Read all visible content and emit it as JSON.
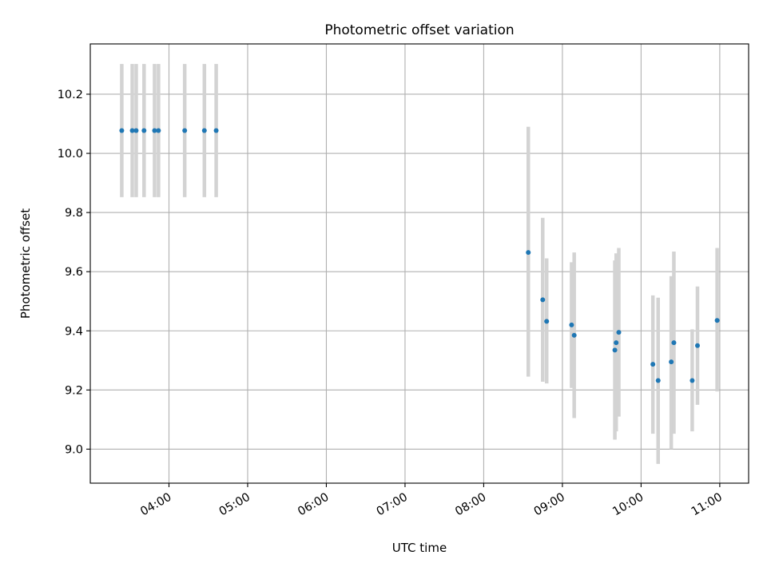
{
  "chart_data": {
    "type": "scatter",
    "title": "Photometric offset variation",
    "xlabel": "UTC time",
    "ylabel": "Photometric offset",
    "x_tick_labels": [
      "04:00",
      "05:00",
      "06:00",
      "07:00",
      "08:00",
      "09:00",
      "10:00",
      "11:00"
    ],
    "y_tick_labels": [
      "9.0",
      "9.2",
      "9.4",
      "9.6",
      "9.8",
      "10.0",
      "10.2"
    ],
    "xlim": [
      "03:00",
      "11:22"
    ],
    "ylim": [
      8.885,
      10.37
    ],
    "grid": true,
    "legend": "none",
    "colors": {
      "marker": "#1f77b4",
      "errorbar": "#d3d3d3",
      "grid": "#b0b0b0"
    },
    "series": [
      {
        "points": [
          {
            "x": "03:24",
            "y": 10.077,
            "ylo": 9.852,
            "yhi": 10.302
          },
          {
            "x": "03:32",
            "y": 10.077,
            "ylo": 9.852,
            "yhi": 10.302
          },
          {
            "x": "03:35",
            "y": 10.077,
            "ylo": 9.852,
            "yhi": 10.302
          },
          {
            "x": "03:41",
            "y": 10.077,
            "ylo": 9.852,
            "yhi": 10.302
          },
          {
            "x": "03:49",
            "y": 10.077,
            "ylo": 9.852,
            "yhi": 10.302
          },
          {
            "x": "03:52",
            "y": 10.077,
            "ylo": 9.852,
            "yhi": 10.302
          },
          {
            "x": "04:12",
            "y": 10.077,
            "ylo": 9.852,
            "yhi": 10.302
          },
          {
            "x": "04:27",
            "y": 10.077,
            "ylo": 9.852,
            "yhi": 10.302
          },
          {
            "x": "04:36",
            "y": 10.077,
            "ylo": 9.852,
            "yhi": 10.302
          },
          {
            "x": "08:34",
            "y": 9.665,
            "ylo": 9.245,
            "yhi": 10.09
          },
          {
            "x": "08:45",
            "y": 9.505,
            "ylo": 9.228,
            "yhi": 9.782
          },
          {
            "x": "08:48",
            "y": 9.432,
            "ylo": 9.222,
            "yhi": 9.645
          },
          {
            "x": "09:07",
            "y": 9.42,
            "ylo": 9.207,
            "yhi": 9.632
          },
          {
            "x": "09:09",
            "y": 9.385,
            "ylo": 9.105,
            "yhi": 9.665
          },
          {
            "x": "09:40",
            "y": 9.335,
            "ylo": 9.032,
            "yhi": 9.638
          },
          {
            "x": "09:41",
            "y": 9.36,
            "ylo": 9.06,
            "yhi": 9.662
          },
          {
            "x": "09:43",
            "y": 9.395,
            "ylo": 9.11,
            "yhi": 9.68
          },
          {
            "x": "10:09",
            "y": 9.287,
            "ylo": 9.052,
            "yhi": 9.52
          },
          {
            "x": "10:13",
            "y": 9.232,
            "ylo": 8.95,
            "yhi": 9.512
          },
          {
            "x": "10:23",
            "y": 9.295,
            "ylo": 9.0,
            "yhi": 9.585
          },
          {
            "x": "10:25",
            "y": 9.36,
            "ylo": 9.052,
            "yhi": 9.668
          },
          {
            "x": "10:39",
            "y": 9.232,
            "ylo": 9.06,
            "yhi": 9.405
          },
          {
            "x": "10:43",
            "y": 9.35,
            "ylo": 9.15,
            "yhi": 9.55
          },
          {
            "x": "10:58",
            "y": 9.435,
            "ylo": 9.195,
            "yhi": 9.68
          }
        ]
      }
    ]
  }
}
